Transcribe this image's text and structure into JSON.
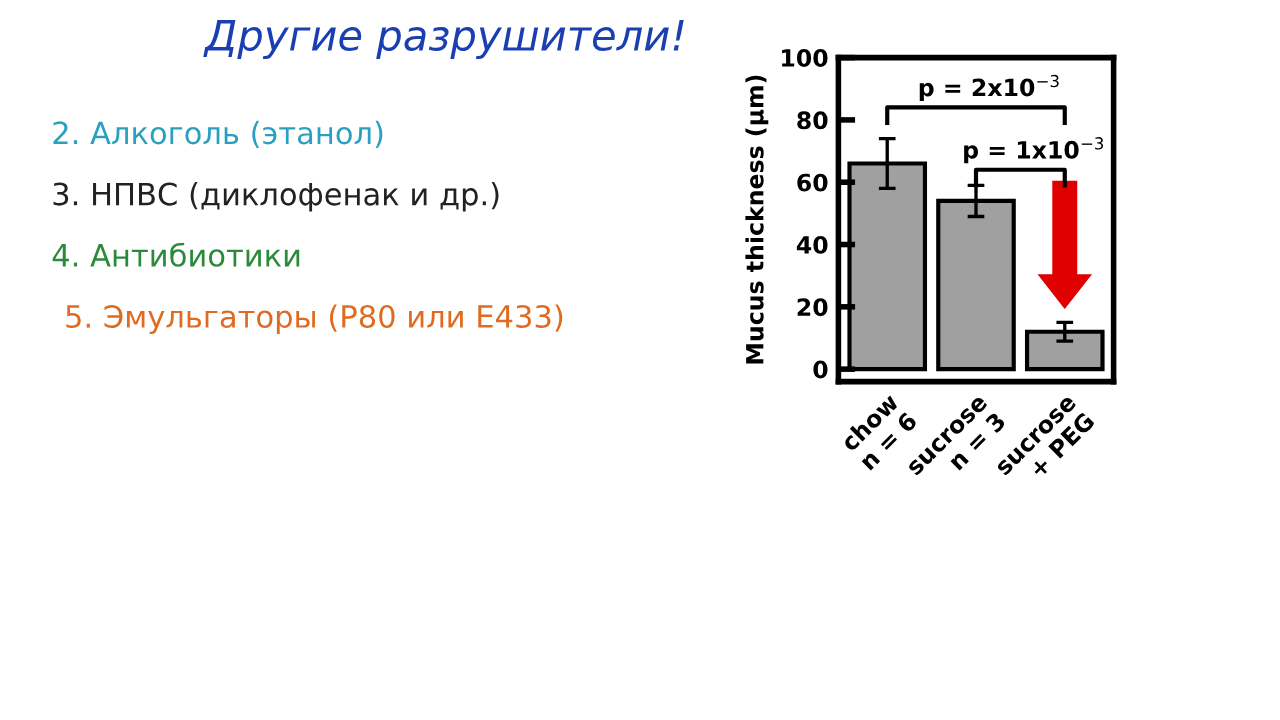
{
  "chart_data": {
    "type": "bar",
    "title": "Другие разрушители!",
    "ylabel": "Mucus thickness (µm)",
    "categories": [
      "chow\nn = 6",
      "sucrose\nn = 3",
      "sucrose\n+ PEG"
    ],
    "series": [
      {
        "color": "#a0a0a0",
        "values": [
          66,
          54,
          12
        ],
        "errors": [
          8,
          5,
          3
        ]
      }
    ],
    "ylim": [
      -4,
      100
    ],
    "yticks": [
      0,
      20,
      40,
      60,
      80,
      100
    ],
    "grid": false,
    "legend": false,
    "annotations": [
      "2. Алкоголь (этанол)",
      "3. НПВС (диклофенак и др.)",
      "4. Антибиотики",
      "5. Эмульгаторы (P80 или E433)",
      "p = 2x10$^{−3}$",
      "p = 1x10$^{−3}$"
    ]
  }
}
